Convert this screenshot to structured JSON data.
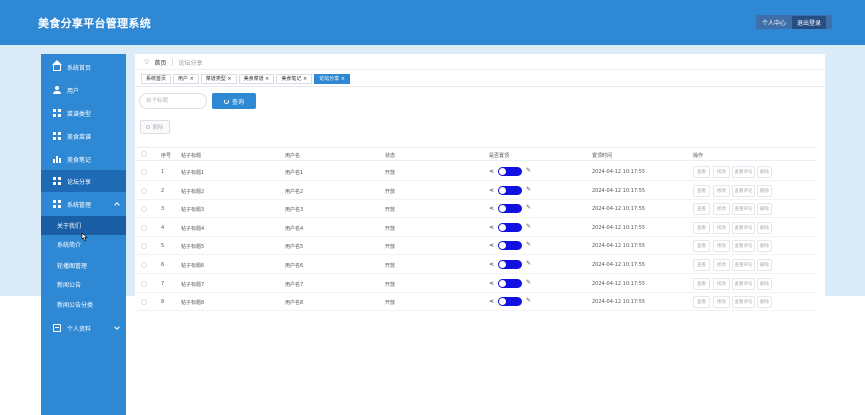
{
  "header": {
    "title": "美食分享平台管理系统",
    "personal_center": "个人中心",
    "logout": "退出登录"
  },
  "sidebar": {
    "items": [
      {
        "label": "系统首页",
        "icon": "home-icon"
      },
      {
        "label": "用户",
        "icon": "user-icon"
      },
      {
        "label": "菜谱类型",
        "icon": "grid-icon"
      },
      {
        "label": "美食菜谱",
        "icon": "grid-icon"
      },
      {
        "label": "美食笔记",
        "icon": "bar-chart-icon"
      },
      {
        "label": "论坛分享",
        "icon": "grid-icon"
      },
      {
        "label": "系统管理",
        "icon": "grid-icon"
      }
    ],
    "sub_items": [
      "关于我们",
      "系统简介",
      "轮播图管理",
      "新闻公告",
      "新闻公告分类"
    ],
    "personal": "个人资料"
  },
  "breadcrumb": {
    "home": "首页",
    "current": "论坛分享"
  },
  "tabs": [
    {
      "label": "系统首页",
      "active": false
    },
    {
      "label": "用户 ×",
      "active": false
    },
    {
      "label": "菜谱类型 ×",
      "active": false
    },
    {
      "label": "美食菜谱 ×",
      "active": false
    },
    {
      "label": "美食笔记 ×",
      "active": false
    },
    {
      "label": "论坛分享 ×",
      "active": true
    }
  ],
  "search": {
    "placeholder": "帖子标题",
    "query_button": "查询"
  },
  "delete_button": "删除",
  "table": {
    "headers": [
      "序号",
      "帖子标题",
      "用户名",
      "状态",
      "是否置顶",
      "置顶时间",
      "操作"
    ],
    "rows": [
      {
        "no": "1",
        "title": "帖子标题1",
        "user": "用户名1",
        "status": "开放",
        "top_time": "2024-04-12 10:17:55"
      },
      {
        "no": "2",
        "title": "帖子标题2",
        "user": "用户名2",
        "status": "开放",
        "top_time": "2024-04-12 10:17:55"
      },
      {
        "no": "3",
        "title": "帖子标题3",
        "user": "用户名3",
        "status": "开放",
        "top_time": "2024-04-12 10:17:55"
      },
      {
        "no": "4",
        "title": "帖子标题4",
        "user": "用户名4",
        "status": "开放",
        "top_time": "2024-04-12 10:17:55"
      },
      {
        "no": "5",
        "title": "帖子标题5",
        "user": "用户名5",
        "status": "开放",
        "top_time": "2024-04-12 10:17:55"
      },
      {
        "no": "6",
        "title": "帖子标题6",
        "user": "用户名6",
        "status": "开放",
        "top_time": "2024-04-12 10:17:55"
      },
      {
        "no": "7",
        "title": "帖子标题7",
        "user": "用户名7",
        "status": "开放",
        "top_time": "2024-04-12 10:17:55"
      },
      {
        "no": "8",
        "title": "帖子标题8",
        "user": "用户名8",
        "status": "开放",
        "top_time": "2024-04-12 10:17:55"
      }
    ],
    "actions": [
      "查看",
      "修改",
      "查看评论",
      "删除"
    ]
  },
  "colors": {
    "primary": "#2e88d4",
    "toggle_on": "#1010e0",
    "band": "#dcebf8"
  }
}
